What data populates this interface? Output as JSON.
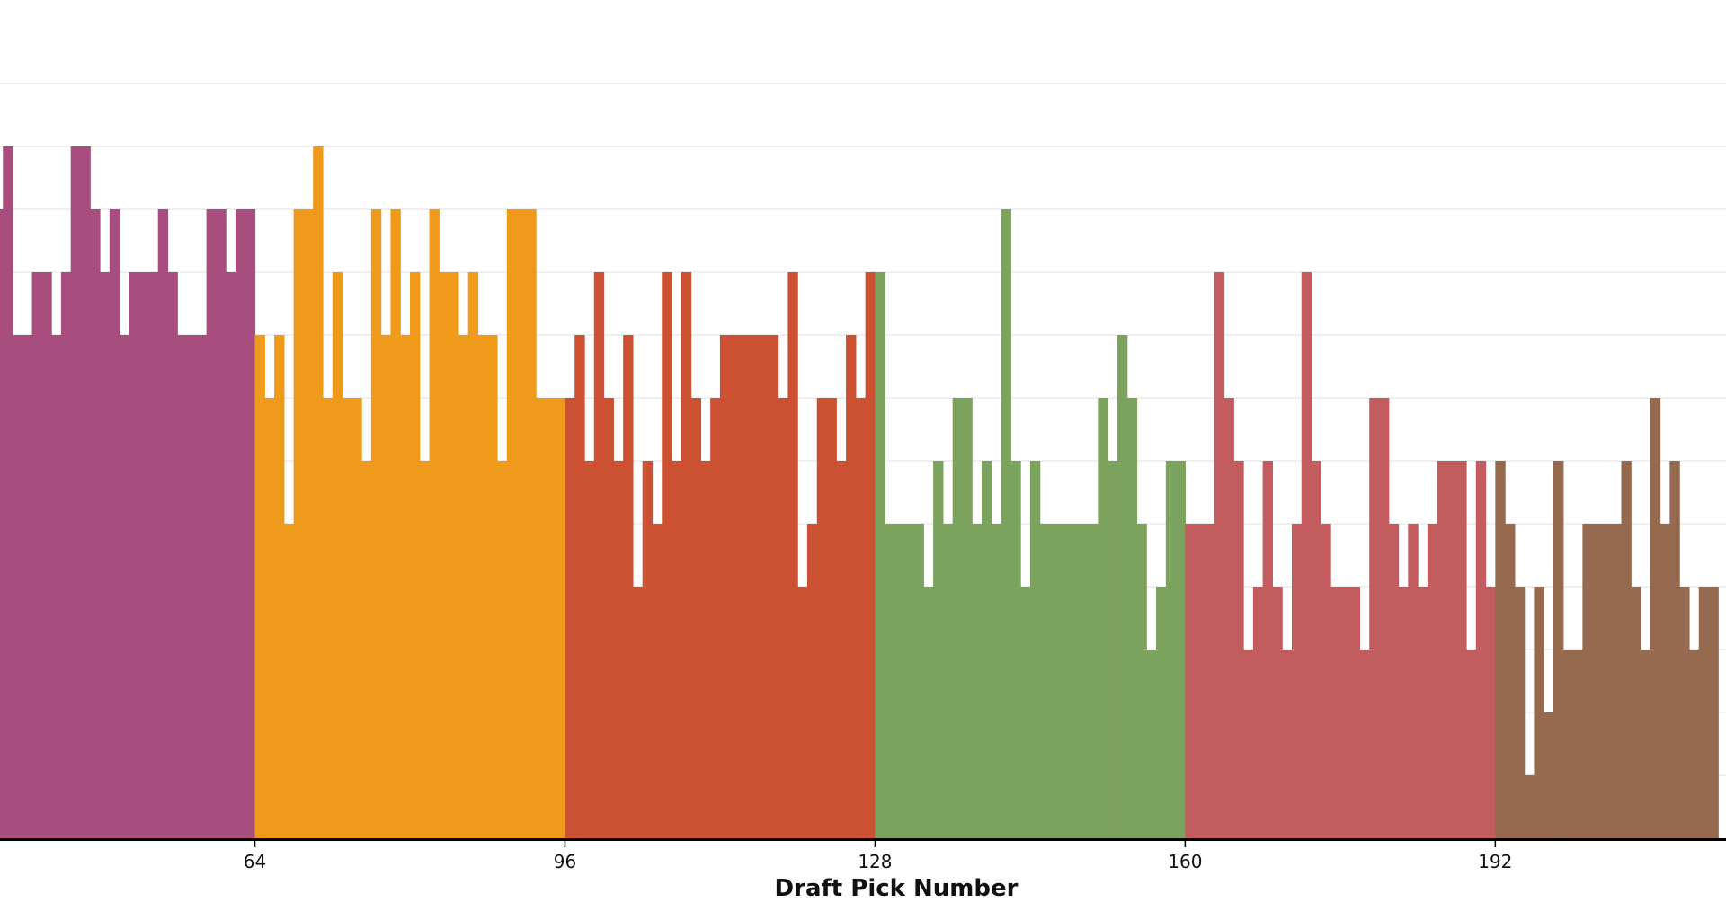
{
  "chart_data": {
    "type": "bar",
    "title": "",
    "xlabel": "Draft Pick Number",
    "ylabel": "",
    "xlim": [
      37.2,
      215
    ],
    "ylim": [
      0,
      12
    ],
    "grid": true,
    "y_gridlines": [
      1,
      2,
      3,
      4,
      5,
      6,
      7,
      8,
      9,
      10,
      11,
      12
    ],
    "x_ticks": [
      64,
      96,
      128,
      160,
      192
    ],
    "x_tick_labels": [
      "64",
      "96",
      "128",
      "160",
      "192"
    ],
    "colors": {
      "series_1": "#a84e7e",
      "series_2": "#f09a1c",
      "series_3": "#cc5132",
      "series_4": "#7ca35e",
      "series_5": "#c25c5f",
      "series_6": "#956a4f",
      "grid": "#e6e6e6",
      "axis": "#000000"
    },
    "series": [
      {
        "x": [
          37,
          38,
          39,
          40,
          41,
          42,
          43,
          44,
          45,
          46,
          47,
          48,
          49,
          50,
          51,
          52,
          53,
          54,
          55,
          56,
          57,
          58,
          59,
          60,
          61,
          62,
          63
        ],
        "values": [
          10,
          11,
          8,
          8,
          9,
          9,
          8,
          9,
          11,
          11,
          10,
          9,
          10,
          8,
          9,
          9,
          9,
          10,
          9,
          8,
          8,
          8,
          10,
          10,
          9,
          10,
          10
        ]
      },
      {
        "x": [
          64,
          65,
          66,
          67,
          68,
          69,
          70,
          71,
          72,
          73,
          74,
          75,
          76,
          77,
          78,
          79,
          80,
          81,
          82,
          83,
          84,
          85,
          86,
          87,
          88,
          89,
          90,
          91,
          92,
          93,
          94,
          95
        ],
        "values": [
          8,
          7,
          8,
          5,
          10,
          10,
          11,
          7,
          9,
          7,
          7,
          6,
          10,
          8,
          10,
          8,
          9,
          6,
          10,
          9,
          9,
          8,
          9,
          8,
          8,
          6,
          10,
          10,
          10,
          7,
          7,
          7
        ]
      },
      {
        "x": [
          96,
          97,
          98,
          99,
          100,
          101,
          102,
          103,
          104,
          105,
          106,
          107,
          108,
          109,
          110,
          111,
          112,
          113,
          114,
          115,
          116,
          117,
          118,
          119,
          120,
          121,
          122,
          123,
          124,
          125,
          126,
          127
        ],
        "values": [
          7,
          8,
          6,
          9,
          7,
          6,
          8,
          4,
          6,
          5,
          9,
          6,
          9,
          7,
          6,
          7,
          8,
          8,
          8,
          8,
          8,
          8,
          7,
          9,
          4,
          5,
          7,
          7,
          6,
          8,
          7,
          9
        ]
      },
      {
        "x": [
          128,
          129,
          130,
          131,
          132,
          133,
          134,
          135,
          136,
          137,
          138,
          139,
          140,
          141,
          142,
          143,
          144,
          145,
          146,
          147,
          148,
          149,
          150,
          151,
          152,
          153,
          154,
          155,
          156,
          157,
          158,
          159
        ],
        "values": [
          9,
          5,
          5,
          5,
          5,
          4,
          6,
          5,
          7,
          7,
          5,
          6,
          5,
          10,
          6,
          4,
          6,
          5,
          5,
          5,
          5,
          5,
          5,
          7,
          6,
          8,
          7,
          5,
          3,
          4,
          6,
          6
        ]
      },
      {
        "x": [
          160,
          161,
          162,
          163,
          164,
          165,
          166,
          167,
          168,
          169,
          170,
          171,
          172,
          173,
          174,
          175,
          176,
          177,
          178,
          179,
          180,
          181,
          182,
          183,
          184,
          185,
          186,
          187,
          188,
          189,
          190,
          191
        ],
        "values": [
          5,
          5,
          5,
          9,
          7,
          6,
          3,
          4,
          6,
          4,
          3,
          5,
          9,
          6,
          5,
          4,
          4,
          4,
          3,
          7,
          7,
          5,
          4,
          5,
          4,
          5,
          6,
          6,
          6,
          3,
          6,
          4
        ]
      },
      {
        "x": [
          192,
          193,
          194,
          195,
          196,
          197,
          198,
          199,
          200,
          201,
          202,
          203,
          204,
          205,
          206,
          207,
          208,
          209,
          210,
          211,
          212,
          213,
          214
        ],
        "values": [
          6,
          5,
          4,
          1,
          4,
          2,
          6,
          3,
          3,
          5,
          5,
          5,
          5,
          6,
          4,
          3,
          7,
          5,
          6,
          4,
          3,
          4,
          4
        ]
      }
    ]
  }
}
